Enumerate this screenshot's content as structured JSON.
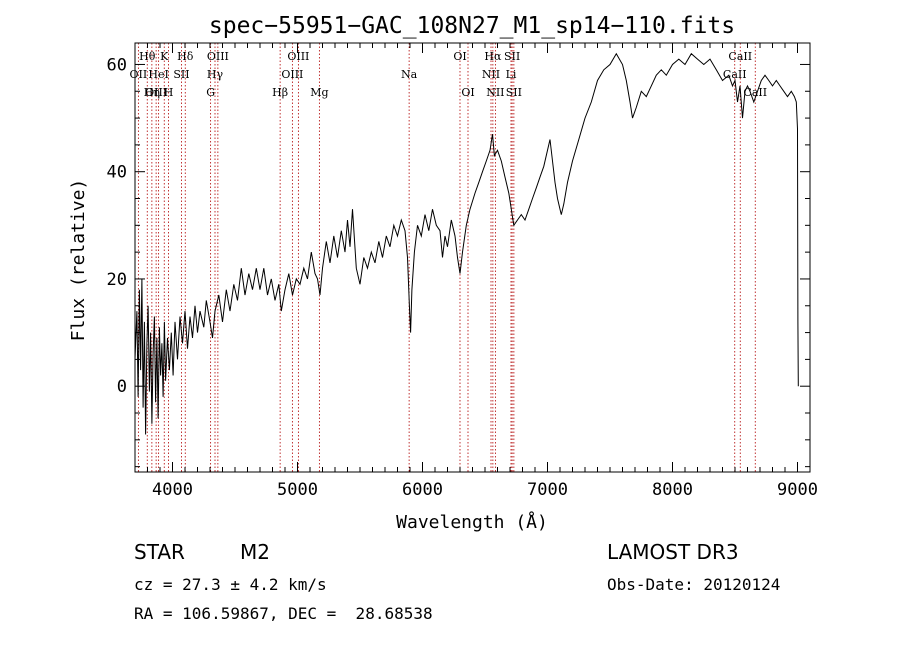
{
  "chart_data": {
    "type": "line",
    "title": "spec−55951−GAC_108N27_M1_sp14−110.fits",
    "xlabel": "Wavelength (Å)",
    "ylabel": "Flux (relative)",
    "xlim": [
      3700,
      9100
    ],
    "ylim": [
      -16,
      64
    ],
    "xticks": [
      4000,
      5000,
      6000,
      7000,
      8000,
      9000
    ],
    "yticks": [
      0,
      20,
      40,
      60
    ],
    "series": [
      {
        "name": "flux",
        "points": [
          [
            3700,
            5
          ],
          [
            3715,
            14
          ],
          [
            3725,
            -2
          ],
          [
            3735,
            18
          ],
          [
            3745,
            3
          ],
          [
            3755,
            20
          ],
          [
            3765,
            -4
          ],
          [
            3775,
            12
          ],
          [
            3785,
            -9
          ],
          [
            3795,
            8
          ],
          [
            3805,
            15
          ],
          [
            3815,
            -1
          ],
          [
            3825,
            10
          ],
          [
            3835,
            -7
          ],
          [
            3845,
            6
          ],
          [
            3855,
            13
          ],
          [
            3865,
            -3
          ],
          [
            3875,
            9
          ],
          [
            3885,
            -6
          ],
          [
            3895,
            11
          ],
          [
            3905,
            2
          ],
          [
            3915,
            8
          ],
          [
            3925,
            -2
          ],
          [
            3935,
            12
          ],
          [
            3945,
            1
          ],
          [
            3960,
            9
          ],
          [
            3975,
            3
          ],
          [
            3990,
            10
          ],
          [
            4005,
            2
          ],
          [
            4020,
            12
          ],
          [
            4040,
            5
          ],
          [
            4060,
            13
          ],
          [
            4080,
            8
          ],
          [
            4100,
            14
          ],
          [
            4120,
            7
          ],
          [
            4140,
            13
          ],
          [
            4160,
            9
          ],
          [
            4180,
            15
          ],
          [
            4200,
            10
          ],
          [
            4220,
            14
          ],
          [
            4250,
            11
          ],
          [
            4270,
            16
          ],
          [
            4300,
            12
          ],
          [
            4320,
            9
          ],
          [
            4340,
            14
          ],
          [
            4370,
            17
          ],
          [
            4400,
            12
          ],
          [
            4430,
            18
          ],
          [
            4460,
            14
          ],
          [
            4490,
            19
          ],
          [
            4520,
            16
          ],
          [
            4550,
            22
          ],
          [
            4580,
            17
          ],
          [
            4610,
            21
          ],
          [
            4640,
            18
          ],
          [
            4670,
            22
          ],
          [
            4700,
            18
          ],
          [
            4730,
            22
          ],
          [
            4760,
            17
          ],
          [
            4790,
            20
          ],
          [
            4820,
            16
          ],
          [
            4850,
            19
          ],
          [
            4870,
            14
          ],
          [
            4900,
            18
          ],
          [
            4930,
            21
          ],
          [
            4960,
            17
          ],
          [
            4990,
            20
          ],
          [
            5020,
            19
          ],
          [
            5050,
            22
          ],
          [
            5080,
            20
          ],
          [
            5110,
            25
          ],
          [
            5140,
            21
          ],
          [
            5160,
            20
          ],
          [
            5180,
            17
          ],
          [
            5200,
            22
          ],
          [
            5230,
            27
          ],
          [
            5260,
            23
          ],
          [
            5290,
            28
          ],
          [
            5320,
            24
          ],
          [
            5350,
            29
          ],
          [
            5380,
            25
          ],
          [
            5400,
            31
          ],
          [
            5420,
            26
          ],
          [
            5440,
            33
          ],
          [
            5470,
            22
          ],
          [
            5500,
            19
          ],
          [
            5530,
            24
          ],
          [
            5560,
            22
          ],
          [
            5590,
            25
          ],
          [
            5620,
            23
          ],
          [
            5650,
            27
          ],
          [
            5680,
            24
          ],
          [
            5710,
            28
          ],
          [
            5740,
            26
          ],
          [
            5770,
            30
          ],
          [
            5800,
            28
          ],
          [
            5830,
            31
          ],
          [
            5860,
            29
          ],
          [
            5880,
            24
          ],
          [
            5895,
            15
          ],
          [
            5905,
            10
          ],
          [
            5915,
            18
          ],
          [
            5935,
            25
          ],
          [
            5960,
            30
          ],
          [
            5990,
            28
          ],
          [
            6020,
            32
          ],
          [
            6050,
            29
          ],
          [
            6080,
            33
          ],
          [
            6110,
            30
          ],
          [
            6140,
            29
          ],
          [
            6160,
            24
          ],
          [
            6180,
            28
          ],
          [
            6200,
            26
          ],
          [
            6230,
            31
          ],
          [
            6260,
            28
          ],
          [
            6280,
            24
          ],
          [
            6300,
            21
          ],
          [
            6320,
            25
          ],
          [
            6350,
            30
          ],
          [
            6380,
            33
          ],
          [
            6420,
            36
          ],
          [
            6450,
            38
          ],
          [
            6480,
            40
          ],
          [
            6510,
            42
          ],
          [
            6540,
            44
          ],
          [
            6560,
            47
          ],
          [
            6575,
            43
          ],
          [
            6600,
            44
          ],
          [
            6630,
            42
          ],
          [
            6660,
            39
          ],
          [
            6690,
            36
          ],
          [
            6710,
            33
          ],
          [
            6730,
            30
          ],
          [
            6760,
            31
          ],
          [
            6790,
            32
          ],
          [
            6820,
            31
          ],
          [
            6850,
            33
          ],
          [
            6880,
            35
          ],
          [
            6910,
            37
          ],
          [
            6940,
            39
          ],
          [
            6970,
            41
          ],
          [
            7000,
            44
          ],
          [
            7020,
            46
          ],
          [
            7040,
            42
          ],
          [
            7060,
            38
          ],
          [
            7080,
            35
          ],
          [
            7100,
            33
          ],
          [
            7110,
            32
          ],
          [
            7130,
            34
          ],
          [
            7160,
            38
          ],
          [
            7200,
            42
          ],
          [
            7250,
            46
          ],
          [
            7300,
            50
          ],
          [
            7350,
            53
          ],
          [
            7400,
            57
          ],
          [
            7450,
            59
          ],
          [
            7500,
            60
          ],
          [
            7550,
            62
          ],
          [
            7600,
            60
          ],
          [
            7630,
            57
          ],
          [
            7660,
            53
          ],
          [
            7680,
            50
          ],
          [
            7710,
            52
          ],
          [
            7750,
            55
          ],
          [
            7790,
            54
          ],
          [
            7830,
            56
          ],
          [
            7870,
            58
          ],
          [
            7910,
            59
          ],
          [
            7950,
            58
          ],
          [
            8000,
            60
          ],
          [
            8050,
            61
          ],
          [
            8100,
            60
          ],
          [
            8150,
            62
          ],
          [
            8200,
            61
          ],
          [
            8250,
            60
          ],
          [
            8300,
            61
          ],
          [
            8350,
            59
          ],
          [
            8400,
            57
          ],
          [
            8450,
            58
          ],
          [
            8480,
            56
          ],
          [
            8500,
            57
          ],
          [
            8520,
            53
          ],
          [
            8540,
            56
          ],
          [
            8560,
            50
          ],
          [
            8580,
            55
          ],
          [
            8600,
            56
          ],
          [
            8620,
            55
          ],
          [
            8650,
            53
          ],
          [
            8680,
            55
          ],
          [
            8710,
            57
          ],
          [
            8740,
            58
          ],
          [
            8770,
            57
          ],
          [
            8800,
            56
          ],
          [
            8830,
            57
          ],
          [
            8860,
            56
          ],
          [
            8890,
            55
          ],
          [
            8920,
            54
          ],
          [
            8950,
            55
          ],
          [
            8975,
            54
          ],
          [
            8990,
            53
          ],
          [
            9000,
            48
          ],
          [
            9003,
            12
          ],
          [
            9006,
            0
          ]
        ]
      }
    ],
    "lines": [
      {
        "label": "Hθ",
        "x": 3798,
        "row": 0
      },
      {
        "label": "K",
        "x": 3934,
        "row": 0
      },
      {
        "label": "Hδ",
        "x": 4102,
        "row": 0
      },
      {
        "label": "OIII",
        "x": 4363,
        "row": 0
      },
      {
        "label": "OIII",
        "x": 5007,
        "row": 0
      },
      {
        "label": "OI",
        "x": 6300,
        "row": 0
      },
      {
        "label": "Hα",
        "x": 6563,
        "row": 0
      },
      {
        "label": "SII",
        "x": 6717,
        "row": 0
      },
      {
        "label": "CaII",
        "x": 8542,
        "row": 0
      },
      {
        "label": "OII",
        "x": 3727,
        "row": 1
      },
      {
        "label": "HeI",
        "x": 3889,
        "row": 1
      },
      {
        "label": "SII",
        "x": 4072,
        "row": 1
      },
      {
        "label": "Hγ",
        "x": 4340,
        "row": 1
      },
      {
        "label": "OIII",
        "x": 4959,
        "row": 1
      },
      {
        "label": "Na",
        "x": 5893,
        "row": 1
      },
      {
        "label": "NII",
        "x": 6548,
        "row": 1
      },
      {
        "label": "Li",
        "x": 6708,
        "row": 1
      },
      {
        "label": "CaII",
        "x": 8498,
        "row": 1
      },
      {
        "label": "OIII",
        "x": 3869,
        "row": 2
      },
      {
        "label": "Hη",
        "x": 3835,
        "row": 2
      },
      {
        "label": "H",
        "x": 3968,
        "row": 2
      },
      {
        "label": "G",
        "x": 4305,
        "row": 2
      },
      {
        "label": "Hβ",
        "x": 4861,
        "row": 2
      },
      {
        "label": "Mg",
        "x": 5175,
        "row": 2
      },
      {
        "label": "OI",
        "x": 6364,
        "row": 2
      },
      {
        "label": "NII",
        "x": 6583,
        "row": 2
      },
      {
        "label": "SII",
        "x": 6731,
        "row": 2
      },
      {
        "label": "CaII",
        "x": 8662,
        "row": 2
      }
    ]
  },
  "info": {
    "object_class": "STAR",
    "subclass": "M2",
    "survey": "LAMOST DR3",
    "cz": "cz = 27.3 ± 4.2 km/s",
    "obs_date": "Obs-Date: 20120124",
    "coords": "RA = 106.59867, DEC =  28.68538"
  }
}
